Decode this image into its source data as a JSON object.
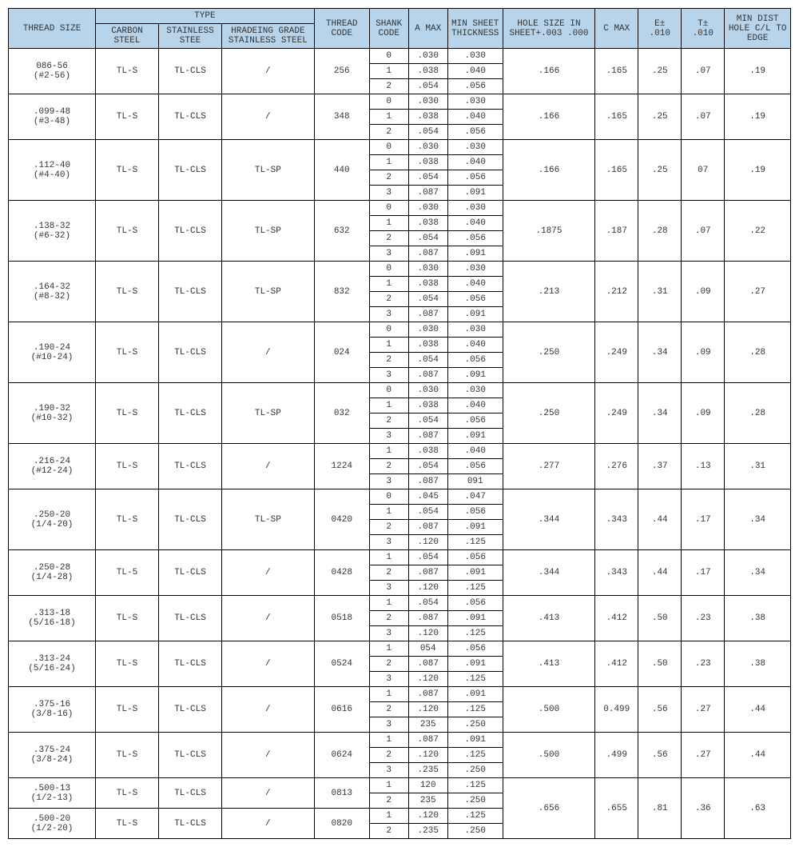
{
  "headers": {
    "thread_size": "THREAD SIZE",
    "type": "TYPE",
    "carbon_steel": "CARBON STEEL",
    "stainless_steel": "STAINLESS STEE",
    "hardening_grade": "HRADEING GRADE STAINLESS STEEL",
    "thread_code": "THREAD CODE",
    "shank_code": "SHANK CODE",
    "a_max": "A MAX",
    "min_sheet": "MIN SHEET THICKNESS",
    "hole_size": "HOLE SIZE IN SHEET+.003 .000",
    "c_max": "C MAX",
    "e_tol": "E± .010",
    "t_tol": "T± .010",
    "min_dist": "MIN DIST HOLE C/L TO EDGE"
  },
  "rows": [
    {
      "thread": "086-56",
      "thread2": "(#2-56)",
      "cs": "TL-S",
      "ss": "TL-CLS",
      "hg": "/",
      "tc": "256",
      "shanks": [
        [
          "0",
          ".030",
          ".030"
        ],
        [
          "1",
          ".038",
          ".040"
        ],
        [
          "2",
          ".054",
          ".056"
        ]
      ],
      "hole": ".166",
      "cmax": ".165",
      "e": ".25",
      "t": ".07",
      "md": ".19"
    },
    {
      "thread": ".099-48",
      "thread2": "(#3-48)",
      "cs": "TL-S",
      "ss": "TL-CLS",
      "hg": "/",
      "tc": "348",
      "shanks": [
        [
          "0",
          ".030",
          ".030"
        ],
        [
          "1",
          ".038",
          ".040"
        ],
        [
          "2",
          ".054",
          ".056"
        ]
      ],
      "hole": ".166",
      "cmax": ".165",
      "e": ".25",
      "t": ".07",
      "md": ".19"
    },
    {
      "thread": ".112-40",
      "thread2": "(#4-40)",
      "cs": "TL-S",
      "ss": "TL-CLS",
      "hg": "TL-SP",
      "tc": "440",
      "shanks": [
        [
          "0",
          ".030",
          ".030"
        ],
        [
          "1",
          ".038",
          ".040"
        ],
        [
          "2",
          ".054",
          ".056"
        ],
        [
          "3",
          ".087",
          ".091"
        ]
      ],
      "hole": ".166",
      "cmax": ".165",
      "e": ".25",
      "t": "07",
      "md": ".19"
    },
    {
      "thread": ".138-32",
      "thread2": "(#6-32)",
      "cs": "TL-S",
      "ss": "TL-CLS",
      "hg": "TL-SP",
      "tc": "632",
      "shanks": [
        [
          "0",
          ".030",
          ".030"
        ],
        [
          "1",
          ".038",
          ".040"
        ],
        [
          "2",
          ".054",
          ".056"
        ],
        [
          "3",
          ".087",
          ".091"
        ]
      ],
      "hole": ".1875",
      "cmax": ".187",
      "e": ".28",
      "t": ".07",
      "md": ".22"
    },
    {
      "thread": ".164-32",
      "thread2": "(#8-32)",
      "cs": "TL-S",
      "ss": "TL-CLS",
      "hg": "TL-SP",
      "tc": "832",
      "shanks": [
        [
          "0",
          ".030",
          ".030"
        ],
        [
          "1",
          ".038",
          ".040"
        ],
        [
          "2",
          ".054",
          ".056"
        ],
        [
          "3",
          ".087",
          ".091"
        ]
      ],
      "hole": ".213",
      "cmax": ".212",
      "e": ".31",
      "t": ".09",
      "md": ".27"
    },
    {
      "thread": ".190-24",
      "thread2": "(#10-24)",
      "cs": "TL-S",
      "ss": "TL-CLS",
      "hg": "/",
      "tc": "024",
      "shanks": [
        [
          "0",
          ".030",
          ".030"
        ],
        [
          "1",
          ".038",
          ".040"
        ],
        [
          "2",
          ".054",
          ".056"
        ],
        [
          "3",
          ".087",
          ".091"
        ]
      ],
      "hole": ".250",
      "cmax": ".249",
      "e": ".34",
      "t": ".09",
      "md": ".28"
    },
    {
      "thread": ".190-32",
      "thread2": "(#10-32)",
      "cs": "TL-S",
      "ss": "TL-CLS",
      "hg": "TL-SP",
      "tc": "032",
      "shanks": [
        [
          "0",
          ".030",
          ".030"
        ],
        [
          "1",
          ".038",
          ".040"
        ],
        [
          "2",
          ".054",
          ".056"
        ],
        [
          "3",
          ".087",
          ".091"
        ]
      ],
      "hole": ".250",
      "cmax": ".249",
      "e": ".34",
      "t": ".09",
      "md": ".28"
    },
    {
      "thread": ".216-24",
      "thread2": "(#12-24)",
      "cs": "TL-S",
      "ss": "TL-CLS",
      "hg": "/",
      "tc": "1224",
      "shanks": [
        [
          "1",
          ".038",
          ".040"
        ],
        [
          "2",
          ".054",
          ".056"
        ],
        [
          "3",
          ".087",
          "091"
        ]
      ],
      "hole": ".277",
      "cmax": ".276",
      "e": ".37",
      "t": ".13",
      "md": ".31"
    },
    {
      "thread": ".250-20",
      "thread2": "(1/4-20)",
      "cs": "TL-S",
      "ss": "TL-CLS",
      "hg": "TL-SP",
      "tc": "0420",
      "shanks": [
        [
          "0",
          ".045",
          ".047"
        ],
        [
          "1",
          ".054",
          ".056"
        ],
        [
          "2",
          ".087",
          ".091"
        ],
        [
          "3",
          ".120",
          ".125"
        ]
      ],
      "hole": ".344",
      "cmax": ".343",
      "e": ".44",
      "t": ".17",
      "md": ".34"
    },
    {
      "thread": ".250-28",
      "thread2": "(1/4-28)",
      "cs": "TL-5",
      "ss": "TL-CLS",
      "hg": "/",
      "tc": "0428",
      "shanks": [
        [
          "1",
          ".054",
          ".056"
        ],
        [
          "2",
          ".087",
          ".091"
        ],
        [
          "3",
          ".120",
          ".125"
        ]
      ],
      "hole": ".344",
      "cmax": ".343",
      "e": ".44",
      "t": ".17",
      "md": ".34"
    },
    {
      "thread": ".313-18",
      "thread2": "(5/16-18)",
      "cs": "TL-S",
      "ss": "TL-CLS",
      "hg": "/",
      "tc": "0518",
      "shanks": [
        [
          "1",
          ".054",
          ".056"
        ],
        [
          "2",
          ".087",
          ".091"
        ],
        [
          "3",
          ".120",
          ".125"
        ]
      ],
      "hole": ".413",
      "cmax": ".412",
      "e": ".50",
      "t": ".23",
      "md": ".38"
    },
    {
      "thread": ".313-24",
      "thread2": "(5/16-24)",
      "cs": "TL-S",
      "ss": "TL-CLS",
      "hg": "/",
      "tc": "0524",
      "shanks": [
        [
          "1",
          "054",
          ".056"
        ],
        [
          "2",
          ".087",
          ".091"
        ],
        [
          "3",
          ".120",
          ".125"
        ]
      ],
      "hole": ".413",
      "cmax": ".412",
      "e": ".50",
      "t": ".23",
      "md": ".38"
    },
    {
      "thread": ".375-16",
      "thread2": "(3/8-16)",
      "cs": "TL-S",
      "ss": "TL-CLS",
      "hg": "/",
      "tc": "0616",
      "shanks": [
        [
          "1",
          ".087",
          ".091"
        ],
        [
          "2",
          ".120",
          ".125"
        ],
        [
          "3",
          "235",
          ".250"
        ]
      ],
      "hole": ".500",
      "cmax": "0.499",
      "e": ".56",
      "t": ".27",
      "md": ".44"
    },
    {
      "thread": ".375-24",
      "thread2": "(3/8-24)",
      "cs": "TL-S",
      "ss": "TL-CLS",
      "hg": "/",
      "tc": "0624",
      "shanks": [
        [
          "1",
          ".087",
          ".091"
        ],
        [
          "2",
          ".120",
          ".125"
        ],
        [
          "3",
          ".235",
          ".250"
        ]
      ],
      "hole": ".500",
      "cmax": ".499",
      "e": ".56",
      "t": ".27",
      "md": ".44"
    },
    {
      "thread": ".500-13",
      "thread2": "(1/2-13)",
      "cs": "TL-S",
      "ss": "TL-CLS",
      "hg": "/",
      "tc": "0813",
      "shanks": [
        [
          "1",
          "120",
          ".125"
        ],
        [
          "2",
          "235",
          ".250"
        ]
      ],
      "hole": ".656",
      "cmax": ".655",
      "e": ".81",
      "t": ".36",
      "md": ".63",
      "mergeNext": true
    },
    {
      "thread": ".500-20",
      "thread2": "(1/2-20)",
      "cs": "TL-S",
      "ss": "TL-CLS",
      "hg": "/",
      "tc": "0820",
      "shanks": [
        [
          "1",
          ".120",
          ".125"
        ],
        [
          "2",
          ".235",
          ".250"
        ]
      ],
      "merged": true
    }
  ]
}
